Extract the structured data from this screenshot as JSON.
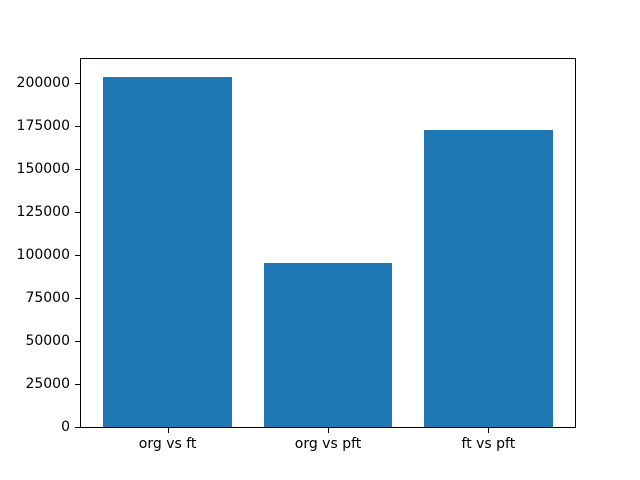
{
  "chart_data": {
    "type": "bar",
    "title": "",
    "xlabel": "",
    "ylabel": "",
    "categories": [
      "org vs ft",
      "org vs pft",
      "ft vs pft"
    ],
    "values": [
      204000,
      95500,
      173000
    ],
    "yticks": [
      0,
      25000,
      50000,
      75000,
      100000,
      125000,
      150000,
      175000,
      200000
    ],
    "ylim": [
      0,
      214200
    ],
    "xlim": [
      -0.54,
      2.54
    ],
    "bar_width_units": 0.8,
    "bar_color": "#1f77b4",
    "spine_color": "#000000",
    "text_color": "#000000",
    "grid": false,
    "legend": null
  }
}
